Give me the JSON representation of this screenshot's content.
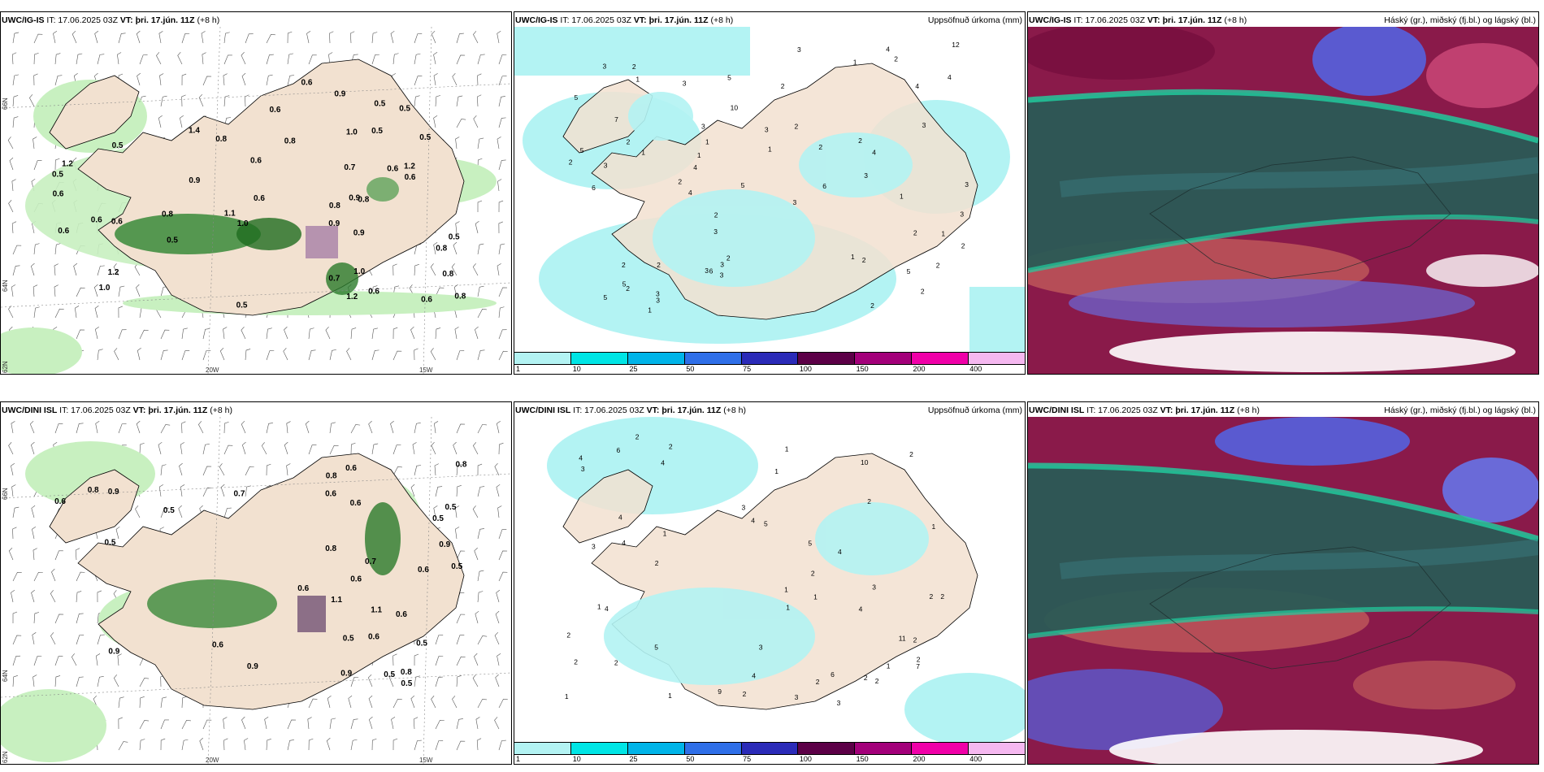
{
  "panels": {
    "top_left": {
      "model": "UWC/IG-IS",
      "it": "IT: 17.06.2025 03Z",
      "vt_prefix": "VT:",
      "vt": "þri. 17.jún. 11Z",
      "lead": "(+8 h)"
    },
    "top_mid": {
      "model": "UWC/IG-IS",
      "it": "IT: 17.06.2025 03Z",
      "vt_prefix": "VT:",
      "vt": "þri. 17.jún. 11Z",
      "lead": "(+8 h)",
      "title_right": "Uppsöfnuð úrkoma (mm)"
    },
    "top_right": {
      "model": "UWC/IG-IS",
      "it": "IT: 17.06.2025 03Z",
      "vt_prefix": "VT:",
      "vt": "þri. 17.jún. 11Z",
      "lead": "(+8 h)",
      "title_right": "Háský (gr.), miðský (fj.bl.) og lágský (bl.)"
    },
    "bot_left": {
      "model": "UWC/DINI ISL",
      "it": "IT: 17.06.2025 03Z",
      "vt_prefix": "VT:",
      "vt": "þri. 17.jún. 11Z",
      "lead": "(+8 h)"
    },
    "bot_mid": {
      "model": "UWC/DINI ISL",
      "it": "IT: 17.06.2025 03Z",
      "vt_prefix": "VT:",
      "vt": "þri. 17.jún. 11Z",
      "lead": "(+8 h)",
      "title_right": "Uppsöfnuð úrkoma (mm)"
    },
    "bot_right": {
      "model": "UWC/DINI ISL",
      "it": "IT: 17.06.2025 03Z",
      "vt_prefix": "VT:",
      "vt": "þri. 17.jún. 11Z",
      "lead": "(+8 h)",
      "title_right": "Háský (gr.), miðský (fj.bl.) og lágský (bl.)"
    }
  },
  "axes": {
    "lat_66": "66N",
    "lat_64": "64N",
    "lat_62": "62N",
    "lon_20": "20W",
    "lon_15": "15W"
  },
  "colorbar": {
    "ticks": [
      "1",
      "10",
      "25",
      "50",
      "75",
      "100",
      "150",
      "200",
      "400"
    ],
    "colors": [
      "#b3f3f3",
      "#00e5e5",
      "#00b4e8",
      "#2f6fe8",
      "#2b2bb8",
      "#5c0047",
      "#a3007a",
      "#f000a8",
      "#f5b8f0"
    ]
  },
  "precip_labels": {
    "top_left": [
      "0.9",
      "0.5",
      "0.6",
      "0.8",
      "0.7",
      "0.5",
      "1.2",
      "0.6",
      "0.8",
      "0.6",
      "0.9",
      "0.8",
      "0.6",
      "0.9",
      "0.5",
      "0.6",
      "0.5",
      "0.6",
      "0.5",
      "0.8",
      "1.0",
      "0.6",
      "0.7",
      "0.9",
      "0.6",
      "1.2",
      "0.5",
      "1.0",
      "0.8",
      "0.6",
      "0.5",
      "0.6",
      "1.2",
      "1.0",
      "0.9",
      "1.0",
      "0.8",
      "0.6",
      "0.8",
      "1.2",
      "1.1",
      "0.8",
      "0.6",
      "0.5",
      "0.5",
      "1.4"
    ],
    "bot_left": [
      "0.6",
      "0.6",
      "0.5",
      "0.5",
      "0.5",
      "0.8",
      "0.6",
      "0.8",
      "0.9",
      "0.9",
      "0.7",
      "0.6",
      "0.8",
      "0.6",
      "0.6",
      "0.5",
      "0.6",
      "0.6",
      "0.8",
      "1.1",
      "0.6",
      "0.7",
      "0.8",
      "0.9",
      "1.1",
      "0.5",
      "0.5",
      "0.9",
      "0.5",
      "0.5",
      "0.9",
      "0.5",
      "0.6"
    ]
  },
  "accum_labels": {
    "top_mid": [
      "1",
      "1",
      "2",
      "3",
      "2",
      "2",
      "1",
      "1",
      "2",
      "2",
      "2",
      "1",
      "1",
      "2",
      "2",
      "3",
      "3",
      "3",
      "4",
      "3",
      "1",
      "2",
      "2",
      "1",
      "2",
      "1",
      "2",
      "5",
      "6",
      "6",
      "5",
      "4",
      "4",
      "3",
      "5",
      "3",
      "5",
      "2",
      "7",
      "3",
      "3",
      "3",
      "5",
      "3",
      "3",
      "2",
      "2",
      "5",
      "3",
      "4",
      "3",
      "3",
      "4",
      "5",
      "10",
      "6",
      "3",
      "2",
      "12",
      "2",
      "1",
      "2",
      "2",
      "2",
      "3",
      "4"
    ],
    "bot_mid": [
      "2",
      "2",
      "1",
      "1",
      "3",
      "2",
      "2",
      "1",
      "1",
      "1",
      "1",
      "2",
      "2",
      "4",
      "4",
      "4",
      "2",
      "4",
      "4",
      "3",
      "2",
      "4",
      "4",
      "5",
      "4",
      "2",
      "2",
      "2",
      "1",
      "1",
      "2",
      "3",
      "2",
      "6",
      "3",
      "2",
      "9",
      "5",
      "2",
      "3",
      "7",
      "5",
      "6",
      "3",
      "3",
      "11",
      "4",
      "10",
      "2",
      "2",
      "1",
      "1",
      "1"
    ]
  }
}
